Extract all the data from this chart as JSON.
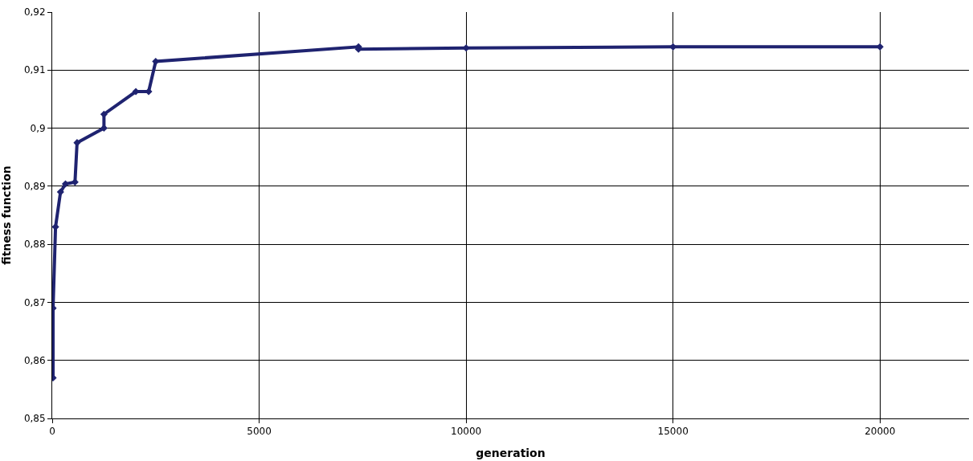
{
  "chart_data": {
    "type": "line",
    "xlabel": "generation",
    "ylabel": "fitness function",
    "x": [
      20,
      20,
      80,
      200,
      320,
      550,
      600,
      1250,
      1250,
      2020,
      2330,
      2500,
      7400,
      7400,
      10000,
      15000,
      20000
    ],
    "series": [
      {
        "color": "#1f2370",
        "values": [
          0.857,
          0.869,
          0.883,
          0.889,
          0.8904,
          0.8907,
          0.8975,
          0.9,
          0.9024,
          0.9063,
          0.9063,
          0.9115,
          0.914,
          0.9136,
          0.9138,
          0.914,
          0.914
        ]
      }
    ],
    "xlim": [
      0,
      22150
    ],
    "xticks": [
      0,
      5000,
      10000,
      15000,
      20000
    ],
    "ylim": [
      0.85,
      0.92
    ],
    "yticks": [
      {
        "value": 0.85,
        "label": "0,85"
      },
      {
        "value": 0.86,
        "label": "0,86"
      },
      {
        "value": 0.87,
        "label": "0,87"
      },
      {
        "value": 0.88,
        "label": "0,88"
      },
      {
        "value": 0.89,
        "label": "0,89"
      },
      {
        "value": 0.9,
        "label": "0,9"
      },
      {
        "value": 0.91,
        "label": "0,91"
      },
      {
        "value": 0.92,
        "label": "0,92"
      }
    ],
    "grid": true,
    "marker": "diamond",
    "line_style": "solid"
  }
}
